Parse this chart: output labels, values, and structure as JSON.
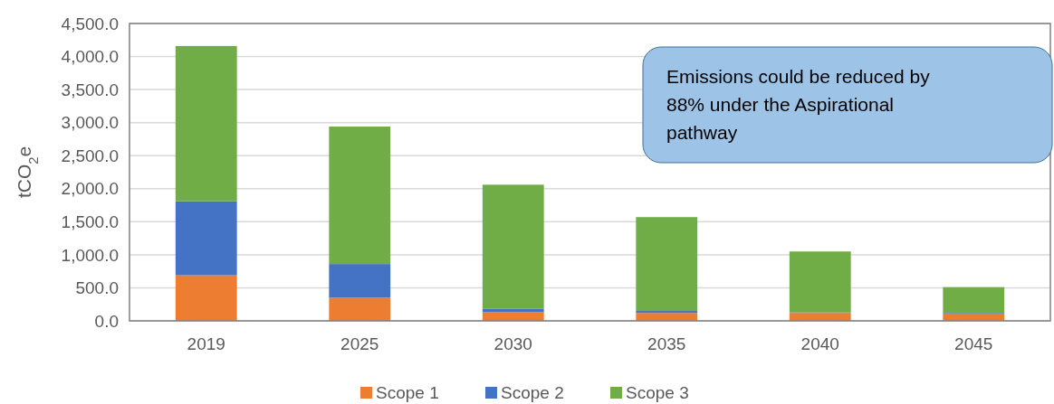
{
  "chart_data": {
    "type": "bar",
    "stacked": true,
    "ylabel": "tCO$_{2}$e",
    "categories": [
      "2019",
      "2025",
      "2030",
      "2035",
      "2040",
      "2045"
    ],
    "series": [
      {
        "name": "Scope 1",
        "color": "#ed7d31",
        "values": [
          690,
          350,
          130,
          120,
          120,
          110
        ]
      },
      {
        "name": "Scope 2",
        "color": "#4472c4",
        "values": [
          1120,
          510,
          50,
          30,
          10,
          10
        ]
      },
      {
        "name": "Scope 3",
        "color": "#70ad47",
        "values": [
          2350,
          2080,
          1880,
          1420,
          920,
          390
        ]
      }
    ],
    "ylim": [
      0,
      4500
    ],
    "yticks": [
      {
        "value": 0,
        "label": "0.0"
      },
      {
        "value": 500,
        "label": "500.0"
      },
      {
        "value": 1000,
        "label": "1,000.0"
      },
      {
        "value": 1500,
        "label": "1,500.0"
      },
      {
        "value": 2000,
        "label": "2,000.0"
      },
      {
        "value": 2500,
        "label": "2,500.0"
      },
      {
        "value": 3000,
        "label": "3,000.0"
      },
      {
        "value": 3500,
        "label": "3,500.0"
      },
      {
        "value": 4000,
        "label": "4,000.0"
      },
      {
        "value": 4500,
        "label": "4,500.0"
      }
    ],
    "grid": "y",
    "legend": "bottom",
    "annotations": [
      "Emissions could be reduced by 88% under the Aspirational pathway"
    ]
  }
}
